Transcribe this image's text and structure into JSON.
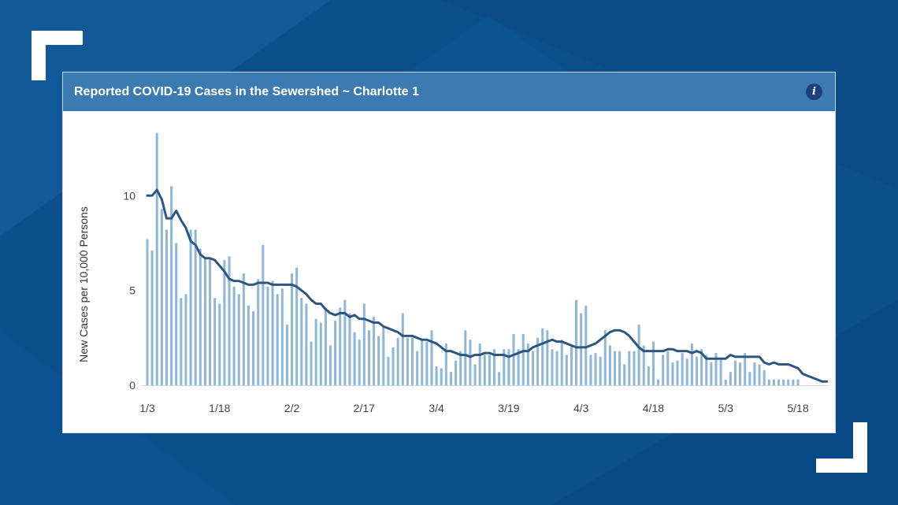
{
  "header": {
    "title": "Reported COVID-19 Cases in the Sewershed ~ Charlotte 1",
    "info_label": "i"
  },
  "colors": {
    "background": "#0b4f8c",
    "header": "#3c7ab2",
    "bar": "#8fb7d9",
    "line": "#2f5680"
  },
  "chart_data": {
    "type": "bar",
    "title": "Reported COVID-19 Cases in the Sewershed ~ Charlotte 1",
    "xlabel": "",
    "ylabel": "New Cases per 10,000 Persons",
    "ylim": [
      0,
      14
    ],
    "yticks": [
      0,
      5,
      10
    ],
    "ytick_labels": [
      "0",
      "5",
      "10"
    ],
    "xtick_labels": [
      "1/3",
      "1/18",
      "2/2",
      "2/17",
      "3/4",
      "3/19",
      "4/3",
      "4/18",
      "5/3",
      "5/18"
    ],
    "xtick_positions": [
      0,
      15,
      30,
      45,
      60,
      75,
      90,
      105,
      120,
      135
    ],
    "grid": false,
    "legend": "none",
    "series": [
      {
        "type": "bar",
        "values": [
          7.7,
          7.1,
          13.3,
          9.3,
          8.2,
          10.5,
          7.5,
          4.6,
          4.8,
          8.2,
          8.2,
          7.2,
          6.7,
          6.7,
          4.6,
          4.3,
          6.6,
          6.8,
          5.2,
          4.8,
          5.9,
          4.2,
          3.9,
          5.6,
          7.4,
          5.2,
          5.5,
          4.8,
          5.1,
          3.2,
          5.9,
          6.2,
          4.6,
          4.3,
          2.3,
          3.5,
          3.3,
          4.0,
          2.1,
          3.4,
          4.1,
          4.5,
          3.8,
          2.8,
          2.4,
          4.3,
          2.9,
          3.6,
          2.6,
          3.1,
          1.5,
          2.0,
          2.5,
          3.8,
          2.5,
          2.5,
          1.8,
          2.4,
          2.3,
          2.9,
          1.0,
          0.9,
          2.2,
          0.7,
          1.3,
          1.8,
          2.9,
          2.4,
          1.1,
          2.2,
          1.6,
          1.6,
          1.9,
          0.7,
          1.9,
          1.9,
          2.7,
          1.9,
          2.7,
          2.2,
          1.8,
          2.5,
          3.0,
          2.9,
          1.9,
          1.8,
          2.4,
          1.6,
          2.1,
          4.5,
          3.8,
          4.2,
          1.6,
          1.7,
          1.5,
          2.9,
          2.1,
          1.8,
          1.8,
          1.1,
          1.8,
          1.8,
          3.2,
          2.1,
          1.0,
          2.3,
          0.3,
          1.6,
          1.8,
          1.2,
          1.3,
          1.7,
          1.4,
          2.2,
          1.5,
          1.9,
          1.6,
          1.2,
          1.7,
          1.4,
          0.3,
          0.7,
          1.3,
          1.2,
          1.7,
          0.7,
          1.2,
          1.1,
          0.8,
          0.3,
          0.3,
          0.3,
          0.3,
          0.3,
          0.3,
          0.3
        ]
      },
      {
        "type": "line",
        "values": [
          10.0,
          10.0,
          10.3,
          9.8,
          8.8,
          8.8,
          9.2,
          8.7,
          8.3,
          7.6,
          7.4,
          6.9,
          6.7,
          6.7,
          6.6,
          6.3,
          6.0,
          5.6,
          5.5,
          5.5,
          5.4,
          5.3,
          5.3,
          5.4,
          5.4,
          5.4,
          5.3,
          5.3,
          5.3,
          5.3,
          5.3,
          5.2,
          5.0,
          4.8,
          4.5,
          4.3,
          4.3,
          4.0,
          3.8,
          3.7,
          3.8,
          3.8,
          3.6,
          3.7,
          3.5,
          3.5,
          3.4,
          3.3,
          3.3,
          3.1,
          3.0,
          2.9,
          2.8,
          2.6,
          2.6,
          2.6,
          2.5,
          2.4,
          2.4,
          2.3,
          2.2,
          2.0,
          1.8,
          1.8,
          1.7,
          1.6,
          1.6,
          1.5,
          1.6,
          1.6,
          1.7,
          1.7,
          1.6,
          1.6,
          1.6,
          1.5,
          1.6,
          1.7,
          1.8,
          1.8,
          2.0,
          2.1,
          2.2,
          2.3,
          2.4,
          2.3,
          2.3,
          2.2,
          2.1,
          2.0,
          2.0,
          2.0,
          2.1,
          2.2,
          2.4,
          2.6,
          2.8,
          2.9,
          2.9,
          2.8,
          2.6,
          2.3,
          2.0,
          1.8,
          1.8,
          1.8,
          1.8,
          1.8,
          1.9,
          1.9,
          1.8,
          1.8,
          1.8,
          1.7,
          1.8,
          1.7,
          1.4,
          1.4,
          1.4,
          1.4,
          1.4,
          1.6,
          1.5,
          1.5,
          1.5,
          1.5,
          1.5,
          1.5,
          1.2,
          1.1,
          1.2,
          1.1,
          1.1,
          1.1,
          1.0,
          0.9,
          0.6,
          0.5,
          0.4,
          0.3,
          0.2,
          0.2
        ]
      }
    ]
  }
}
